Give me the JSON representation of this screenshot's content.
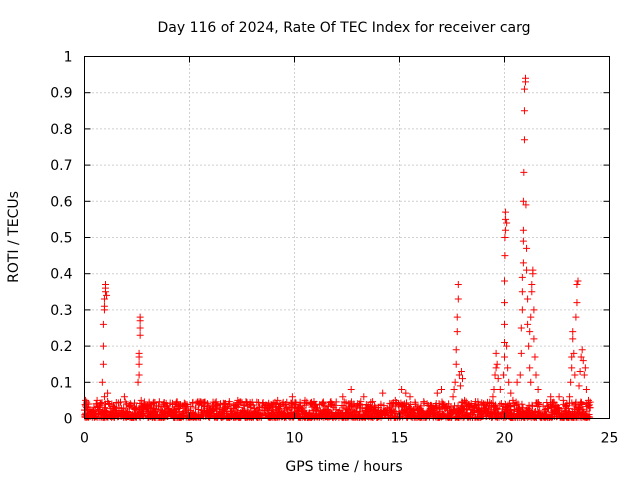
{
  "chart_data": {
    "type": "scatter",
    "title": "Day 116 of 2024, Rate Of TEC Index for receiver carg",
    "xlabel": "GPS time / hours",
    "ylabel": "ROTI / TECUs",
    "xlim": [
      0,
      25
    ],
    "ylim": [
      0,
      1
    ],
    "x_ticks": [
      "0",
      "5",
      "10",
      "15",
      "20",
      "25"
    ],
    "y_ticks": [
      "0",
      "0.1",
      "0.2",
      "0.3",
      "0.4",
      "0.5",
      "0.6",
      "0.7",
      "0.8",
      "0.9",
      "1"
    ],
    "grid": true,
    "marker": "+",
    "marker_color": "#ff0000",
    "background_noise": {
      "x_range": [
        0,
        24.1
      ],
      "typical": 0.02,
      "max": 0.06
    },
    "points": [
      [
        0.05,
        0.05
      ],
      [
        0.1,
        0.03
      ],
      [
        0.2,
        0.04
      ],
      [
        0.4,
        0.02
      ],
      [
        0.6,
        0.05
      ],
      [
        0.85,
        0.1
      ],
      [
        0.9,
        0.15
      ],
      [
        0.9,
        0.2
      ],
      [
        0.9,
        0.26
      ],
      [
        0.95,
        0.3
      ],
      [
        0.95,
        0.31
      ],
      [
        0.95,
        0.33
      ],
      [
        1.0,
        0.35
      ],
      [
        1.0,
        0.36
      ],
      [
        1.0,
        0.37
      ],
      [
        1.05,
        0.34
      ],
      [
        0.95,
        0.06
      ],
      [
        1.0,
        0.04
      ],
      [
        1.1,
        0.07
      ],
      [
        1.3,
        0.04
      ],
      [
        1.9,
        0.06
      ],
      [
        2.0,
        0.04
      ],
      [
        2.55,
        0.1
      ],
      [
        2.6,
        0.12
      ],
      [
        2.6,
        0.15
      ],
      [
        2.6,
        0.17
      ],
      [
        2.6,
        0.18
      ],
      [
        2.65,
        0.23
      ],
      [
        2.65,
        0.25
      ],
      [
        2.65,
        0.27
      ],
      [
        2.65,
        0.28
      ],
      [
        2.7,
        0.05
      ],
      [
        2.7,
        0.03
      ],
      [
        4.8,
        0.04
      ],
      [
        7.3,
        0.05
      ],
      [
        9.2,
        0.05
      ],
      [
        9.9,
        0.06
      ],
      [
        10.5,
        0.05
      ],
      [
        12.3,
        0.06
      ],
      [
        12.7,
        0.08
      ],
      [
        13.3,
        0.06
      ],
      [
        14.2,
        0.07
      ],
      [
        14.8,
        0.05
      ],
      [
        15.1,
        0.08
      ],
      [
        15.3,
        0.07
      ],
      [
        15.5,
        0.06
      ],
      [
        16.8,
        0.07
      ],
      [
        17.0,
        0.08
      ],
      [
        17.55,
        0.06
      ],
      [
        17.6,
        0.08
      ],
      [
        17.65,
        0.1
      ],
      [
        17.7,
        0.15
      ],
      [
        17.7,
        0.19
      ],
      [
        17.75,
        0.24
      ],
      [
        17.75,
        0.28
      ],
      [
        17.8,
        0.33
      ],
      [
        17.8,
        0.37
      ],
      [
        17.85,
        0.12
      ],
      [
        17.9,
        0.09
      ],
      [
        17.95,
        0.13
      ],
      [
        18.0,
        0.11
      ],
      [
        18.1,
        0.05
      ],
      [
        19.45,
        0.06
      ],
      [
        19.5,
        0.08
      ],
      [
        19.55,
        0.12
      ],
      [
        19.6,
        0.14
      ],
      [
        19.6,
        0.18
      ],
      [
        19.65,
        0.15
      ],
      [
        19.7,
        0.11
      ],
      [
        19.8,
        0.08
      ],
      [
        19.95,
        0.12
      ],
      [
        20.0,
        0.17
      ],
      [
        20.0,
        0.21
      ],
      [
        20.0,
        0.26
      ],
      [
        20.0,
        0.32
      ],
      [
        20.0,
        0.38
      ],
      [
        20.02,
        0.45
      ],
      [
        20.02,
        0.5
      ],
      [
        20.05,
        0.52
      ],
      [
        20.05,
        0.55
      ],
      [
        20.05,
        0.57
      ],
      [
        20.1,
        0.54
      ],
      [
        20.1,
        0.2
      ],
      [
        20.15,
        0.14
      ],
      [
        20.2,
        0.1
      ],
      [
        20.3,
        0.07
      ],
      [
        20.4,
        0.05
      ],
      [
        20.6,
        0.1
      ],
      [
        20.75,
        0.12
      ],
      [
        20.8,
        0.18
      ],
      [
        20.8,
        0.25
      ],
      [
        20.85,
        0.3
      ],
      [
        20.85,
        0.35
      ],
      [
        20.85,
        0.39
      ],
      [
        20.9,
        0.43
      ],
      [
        20.9,
        0.49
      ],
      [
        20.9,
        0.52
      ],
      [
        20.9,
        0.6
      ],
      [
        20.92,
        0.68
      ],
      [
        20.95,
        0.77
      ],
      [
        20.95,
        0.85
      ],
      [
        20.95,
        0.91
      ],
      [
        21.0,
        0.93
      ],
      [
        21.0,
        0.94
      ],
      [
        21.02,
        0.59
      ],
      [
        21.05,
        0.47
      ],
      [
        21.05,
        0.41
      ],
      [
        21.1,
        0.33
      ],
      [
        21.1,
        0.26
      ],
      [
        21.15,
        0.2
      ],
      [
        21.2,
        0.14
      ],
      [
        21.25,
        0.1
      ],
      [
        21.2,
        0.24
      ],
      [
        21.25,
        0.28
      ],
      [
        21.3,
        0.35
      ],
      [
        21.3,
        0.37
      ],
      [
        21.35,
        0.4
      ],
      [
        21.35,
        0.41
      ],
      [
        21.4,
        0.3
      ],
      [
        21.4,
        0.22
      ],
      [
        21.45,
        0.17
      ],
      [
        21.5,
        0.12
      ],
      [
        21.6,
        0.08
      ],
      [
        22.2,
        0.06
      ],
      [
        22.6,
        0.06
      ],
      [
        22.8,
        0.05
      ],
      [
        23.1,
        0.06
      ],
      [
        23.15,
        0.1
      ],
      [
        23.2,
        0.14
      ],
      [
        23.2,
        0.17
      ],
      [
        23.25,
        0.22
      ],
      [
        23.25,
        0.24
      ],
      [
        23.3,
        0.18
      ],
      [
        23.35,
        0.12
      ],
      [
        23.4,
        0.28
      ],
      [
        23.45,
        0.32
      ],
      [
        23.45,
        0.37
      ],
      [
        23.5,
        0.38
      ],
      [
        23.55,
        0.09
      ],
      [
        23.6,
        0.13
      ],
      [
        23.65,
        0.17
      ],
      [
        23.7,
        0.19
      ],
      [
        23.75,
        0.16
      ],
      [
        23.8,
        0.12
      ],
      [
        23.85,
        0.14
      ],
      [
        23.9,
        0.08
      ],
      [
        24.0,
        0.05
      ],
      [
        24.05,
        0.03
      ]
    ]
  }
}
